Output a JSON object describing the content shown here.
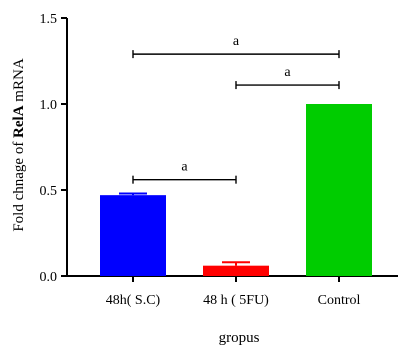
{
  "chart_data": {
    "type": "bar",
    "title": "",
    "xlabel": "gropus",
    "ylabel_parts": [
      {
        "text": "Fold chnage of ",
        "bold": false
      },
      {
        "text": "RelA",
        "bold": true
      },
      {
        "text": " mRNA",
        "bold": false
      }
    ],
    "ylim": [
      0,
      1.5
    ],
    "yticks": [
      "0.0",
      "0.5",
      "1.0",
      "1.5"
    ],
    "ytick_values": [
      0,
      0.5,
      1.0,
      1.5
    ],
    "categories": [
      "48h( S.C)",
      "48 h ( 5FU)",
      "Control"
    ],
    "values": [
      0.47,
      0.06,
      1.0
    ],
    "errors": [
      0.01,
      0.02,
      0
    ],
    "colors": [
      "#0000ff",
      "#ff0000",
      "#00cc00"
    ],
    "significance": [
      {
        "from": 0,
        "to": 1,
        "label": "a",
        "y": 0.56
      },
      {
        "from": 1,
        "to": 2,
        "label": "a",
        "y": 1.11
      },
      {
        "from": 0,
        "to": 2,
        "label": "a",
        "y": 1.29
      }
    ]
  }
}
